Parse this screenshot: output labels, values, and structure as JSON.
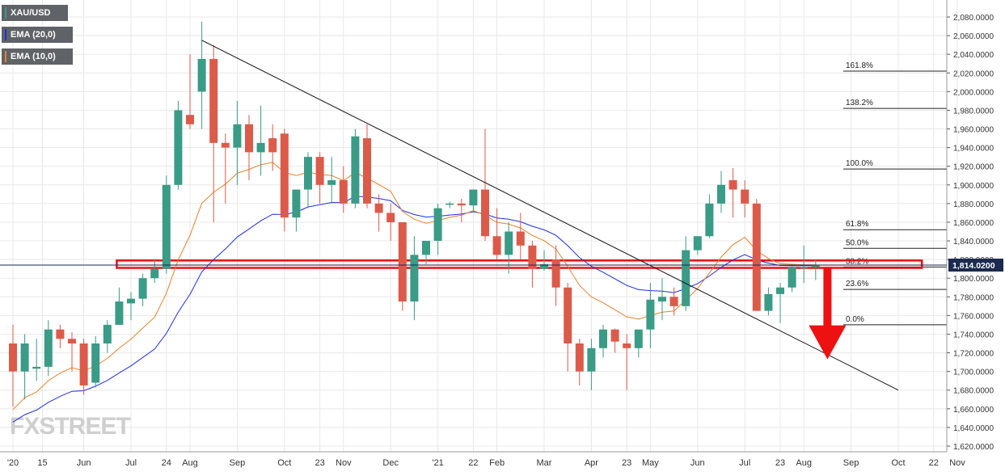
{
  "chart_data": {
    "type": "candlestick",
    "symbol": "XAU/USD",
    "indicators": [
      {
        "name": "EMA (20,0)",
        "color": "#1f2ee8"
      },
      {
        "name": "EMA (10,0)",
        "color": "#e8822a"
      }
    ],
    "colors": {
      "up": "#3a9b86",
      "down": "#dc5a4a",
      "grid": "#e8e8e8",
      "price_tag": "#1b2a4e"
    },
    "ylim": [
      1620,
      2090
    ],
    "y_ticks": [
      "2,080.0000",
      "2,060.0000",
      "2,040.0000",
      "2,020.0000",
      "2,000.0000",
      "1,980.0000",
      "1,960.0000",
      "1,940.0000",
      "1,920.0000",
      "1,900.0000",
      "1,880.0000",
      "1,860.0000",
      "1,840.0000",
      "1,820.0000",
      "1,800.0000",
      "1,780.0000",
      "1,760.0000",
      "1,740.0000",
      "1,720.0000",
      "1,700.0000",
      "1,680.0000",
      "1,660.0000",
      "1,640.0000",
      "1,620.0000"
    ],
    "x_ticks": [
      "'20",
      "15",
      "Jun",
      "Jul",
      "24",
      "Aug",
      "Sep",
      "Oct",
      "23",
      "Nov",
      "Dec",
      "'21",
      "22",
      "Feb",
      "Mar",
      "Apr",
      "23",
      "May",
      "Jun",
      "Jul",
      "23",
      "Aug",
      "Sep",
      "Oct",
      "22",
      "Nov"
    ],
    "x_tick_positions": [
      0,
      2.5,
      6,
      10,
      13,
      15,
      19,
      23,
      26,
      28,
      32,
      36,
      39,
      41,
      45,
      49,
      52,
      54,
      58,
      62,
      65,
      67,
      71,
      75,
      78,
      80
    ],
    "last_price": "1,814.0200",
    "last_price_value": 1814.02,
    "candles": [
      {
        "o": 1730,
        "h": 1750,
        "l": 1662,
        "c": 1700
      },
      {
        "o": 1700,
        "h": 1740,
        "l": 1670,
        "c": 1730
      },
      {
        "o": 1703,
        "h": 1735,
        "l": 1690,
        "c": 1705
      },
      {
        "o": 1705,
        "h": 1755,
        "l": 1695,
        "c": 1745
      },
      {
        "o": 1745,
        "h": 1750,
        "l": 1725,
        "c": 1735
      },
      {
        "o": 1735,
        "h": 1742,
        "l": 1700,
        "c": 1730
      },
      {
        "o": 1730,
        "h": 1735,
        "l": 1675,
        "c": 1685
      },
      {
        "o": 1688,
        "h": 1738,
        "l": 1683,
        "c": 1730
      },
      {
        "o": 1730,
        "h": 1755,
        "l": 1720,
        "c": 1750
      },
      {
        "o": 1750,
        "h": 1790,
        "l": 1750,
        "c": 1775
      },
      {
        "o": 1773,
        "h": 1785,
        "l": 1755,
        "c": 1778
      },
      {
        "o": 1778,
        "h": 1805,
        "l": 1770,
        "c": 1800
      },
      {
        "o": 1800,
        "h": 1820,
        "l": 1795,
        "c": 1810
      },
      {
        "o": 1810,
        "h": 1910,
        "l": 1805,
        "c": 1900
      },
      {
        "o": 1900,
        "h": 1990,
        "l": 1895,
        "c": 1980
      },
      {
        "o": 1975,
        "h": 2040,
        "l": 1960,
        "c": 1965
      },
      {
        "o": 2000,
        "h": 2075,
        "l": 1960,
        "c": 2035
      },
      {
        "o": 2035,
        "h": 2050,
        "l": 1860,
        "c": 1945
      },
      {
        "o": 1945,
        "h": 1955,
        "l": 1880,
        "c": 1940
      },
      {
        "o": 1940,
        "h": 1990,
        "l": 1900,
        "c": 1965
      },
      {
        "o": 1965,
        "h": 1975,
        "l": 1905,
        "c": 1935
      },
      {
        "o": 1935,
        "h": 1985,
        "l": 1910,
        "c": 1945
      },
      {
        "o": 1950,
        "h": 1965,
        "l": 1915,
        "c": 1935
      },
      {
        "o": 1955,
        "h": 1960,
        "l": 1850,
        "c": 1865
      },
      {
        "o": 1865,
        "h": 1895,
        "l": 1850,
        "c": 1895
      },
      {
        "o": 1895,
        "h": 1935,
        "l": 1875,
        "c": 1930
      },
      {
        "o": 1930,
        "h": 1935,
        "l": 1880,
        "c": 1900
      },
      {
        "o": 1900,
        "h": 1930,
        "l": 1880,
        "c": 1905
      },
      {
        "o": 1905,
        "h": 1920,
        "l": 1870,
        "c": 1880
      },
      {
        "o": 1880,
        "h": 1960,
        "l": 1875,
        "c": 1952
      },
      {
        "o": 1950,
        "h": 1965,
        "l": 1875,
        "c": 1880
      },
      {
        "o": 1880,
        "h": 1890,
        "l": 1850,
        "c": 1870
      },
      {
        "o": 1870,
        "h": 1880,
        "l": 1840,
        "c": 1860
      },
      {
        "o": 1860,
        "h": 1860,
        "l": 1765,
        "c": 1775
      },
      {
        "o": 1775,
        "h": 1845,
        "l": 1755,
        "c": 1825
      },
      {
        "o": 1825,
        "h": 1840,
        "l": 1815,
        "c": 1840
      },
      {
        "o": 1840,
        "h": 1880,
        "l": 1825,
        "c": 1875
      },
      {
        "o": 1880,
        "h": 1882,
        "l": 1875,
        "c": 1880
      },
      {
        "o": 1880,
        "h": 1885,
        "l": 1860,
        "c": 1878
      },
      {
        "o": 1878,
        "h": 1895,
        "l": 1870,
        "c": 1895
      },
      {
        "o": 1895,
        "h": 1960,
        "l": 1840,
        "c": 1845
      },
      {
        "o": 1845,
        "h": 1875,
        "l": 1820,
        "c": 1825
      },
      {
        "o": 1825,
        "h": 1860,
        "l": 1805,
        "c": 1850
      },
      {
        "o": 1850,
        "h": 1870,
        "l": 1820,
        "c": 1835
      },
      {
        "o": 1835,
        "h": 1840,
        "l": 1790,
        "c": 1810
      },
      {
        "o": 1810,
        "h": 1830,
        "l": 1808,
        "c": 1815
      },
      {
        "o": 1820,
        "h": 1835,
        "l": 1770,
        "c": 1790
      },
      {
        "o": 1790,
        "h": 1795,
        "l": 1700,
        "c": 1730
      },
      {
        "o": 1730,
        "h": 1735,
        "l": 1685,
        "c": 1700
      },
      {
        "o": 1700,
        "h": 1735,
        "l": 1680,
        "c": 1725
      },
      {
        "o": 1725,
        "h": 1750,
        "l": 1715,
        "c": 1745
      },
      {
        "o": 1745,
        "h": 1746,
        "l": 1720,
        "c": 1732
      },
      {
        "o": 1730,
        "h": 1740,
        "l": 1680,
        "c": 1725
      },
      {
        "o": 1725,
        "h": 1745,
        "l": 1715,
        "c": 1745
      },
      {
        "o": 1745,
        "h": 1795,
        "l": 1725,
        "c": 1777
      },
      {
        "o": 1775,
        "h": 1800,
        "l": 1755,
        "c": 1780
      },
      {
        "o": 1780,
        "h": 1790,
        "l": 1760,
        "c": 1770
      },
      {
        "o": 1770,
        "h": 1845,
        "l": 1765,
        "c": 1830
      },
      {
        "o": 1830,
        "h": 1845,
        "l": 1825,
        "c": 1845
      },
      {
        "o": 1845,
        "h": 1890,
        "l": 1843,
        "c": 1880
      },
      {
        "o": 1880,
        "h": 1915,
        "l": 1870,
        "c": 1900
      },
      {
        "o": 1905,
        "h": 1918,
        "l": 1865,
        "c": 1895
      },
      {
        "o": 1895,
        "h": 1905,
        "l": 1865,
        "c": 1880
      },
      {
        "o": 1880,
        "h": 1885,
        "l": 1765,
        "c": 1765
      },
      {
        "o": 1765,
        "h": 1790,
        "l": 1760,
        "c": 1783
      },
      {
        "o": 1783,
        "h": 1795,
        "l": 1752,
        "c": 1790
      },
      {
        "o": 1790,
        "h": 1815,
        "l": 1785,
        "c": 1812
      },
      {
        "o": 1812,
        "h": 1835,
        "l": 1795,
        "c": 1812
      },
      {
        "o": 1812,
        "h": 1820,
        "l": 1798,
        "c": 1814
      }
    ],
    "fib_levels": [
      {
        "label": "161.8%",
        "value": 2022
      },
      {
        "label": "138.2%",
        "value": 1982
      },
      {
        "label": "100.0%",
        "value": 1917
      },
      {
        "label": "61.8%",
        "value": 1852
      },
      {
        "label": "50.0%",
        "value": 1832
      },
      {
        "label": "38.2%",
        "value": 1812
      },
      {
        "label": "23.6%",
        "value": 1788
      },
      {
        "label": "0.0%",
        "value": 1750
      }
    ],
    "trendline": {
      "from": {
        "i": 16,
        "v": 2055
      },
      "to": {
        "i": 75,
        "v": 1680
      }
    },
    "support_zone": {
      "from_i": 9,
      "to_i": 77,
      "low": 1811,
      "high": 1819
    },
    "arrow": {
      "at_i": 69,
      "from": 1812,
      "to": 1713
    }
  },
  "branding": {
    "logo_text": "FXSTREET"
  }
}
